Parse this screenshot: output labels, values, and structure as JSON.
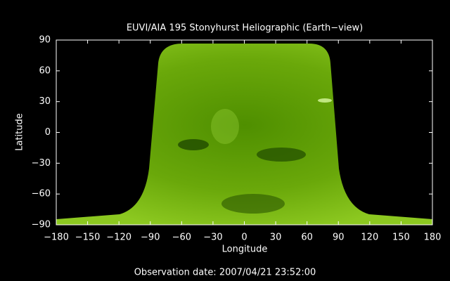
{
  "chart_data": {
    "type": "image",
    "title": "EUVI/AIA 195 Stonyhurst Heliographic (Earth−view)",
    "x_label": "Longitude",
    "y_label": "Latitude",
    "footer": "Observation date: 2007/04/21 23:52:00",
    "xlim": [
      -180,
      180
    ],
    "ylim": [
      -90,
      90
    ],
    "xticks": [
      {
        "value": -180,
        "label": "−180"
      },
      {
        "value": -150,
        "label": "−150"
      },
      {
        "value": -120,
        "label": "−120"
      },
      {
        "value": -90,
        "label": "−90"
      },
      {
        "value": -60,
        "label": "−60"
      },
      {
        "value": -30,
        "label": "−30"
      },
      0,
      30,
      60,
      90,
      120,
      150,
      180
    ],
    "yticks": [
      {
        "value": -90,
        "label": "−90"
      },
      {
        "value": -60,
        "label": "−60"
      },
      {
        "value": -30,
        "label": "−30"
      },
      0,
      30,
      60,
      90
    ]
  }
}
